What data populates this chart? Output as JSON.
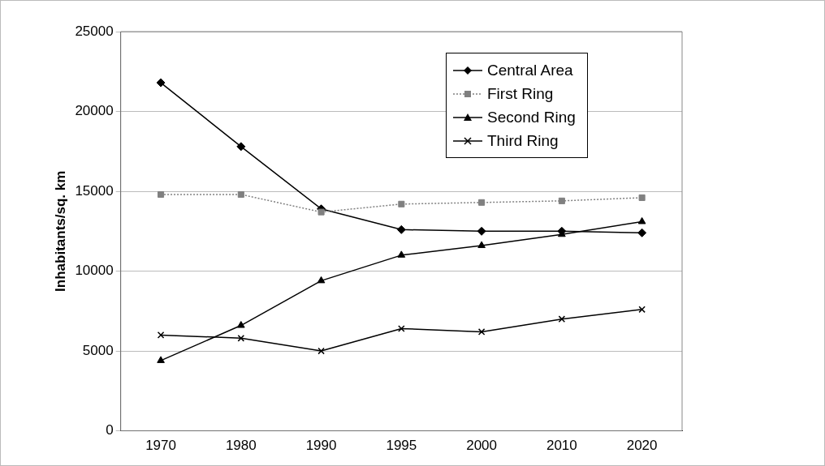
{
  "chart_data": {
    "type": "line",
    "ylabel": "Inhabitants/sq. km",
    "categories": [
      "1970",
      "1980",
      "1990",
      "1995",
      "2000",
      "2010",
      "2020"
    ],
    "series": [
      {
        "name": "Central Area",
        "color": "#000000",
        "marker": "diamond",
        "line_style": "solid",
        "values": [
          21800,
          17800,
          13900,
          12600,
          12500,
          12500,
          12400
        ]
      },
      {
        "name": "First Ring",
        "color": "#808080",
        "marker": "square",
        "line_style": "dotted",
        "values": [
          14800,
          14800,
          13700,
          14200,
          14300,
          14400,
          14600
        ]
      },
      {
        "name": "Second Ring",
        "color": "#000000",
        "marker": "triangle",
        "line_style": "solid",
        "values": [
          4400,
          6600,
          9400,
          11000,
          11600,
          12300,
          13100
        ]
      },
      {
        "name": "Third Ring",
        "color": "#000000",
        "marker": "cross",
        "line_style": "solid",
        "values": [
          6000,
          5800,
          5000,
          6400,
          6200,
          7000,
          7600
        ]
      }
    ],
    "ylim": [
      0,
      25000
    ],
    "yticks": [
      0,
      5000,
      10000,
      15000,
      20000,
      25000
    ],
    "grid": "y",
    "legend": "top right"
  }
}
